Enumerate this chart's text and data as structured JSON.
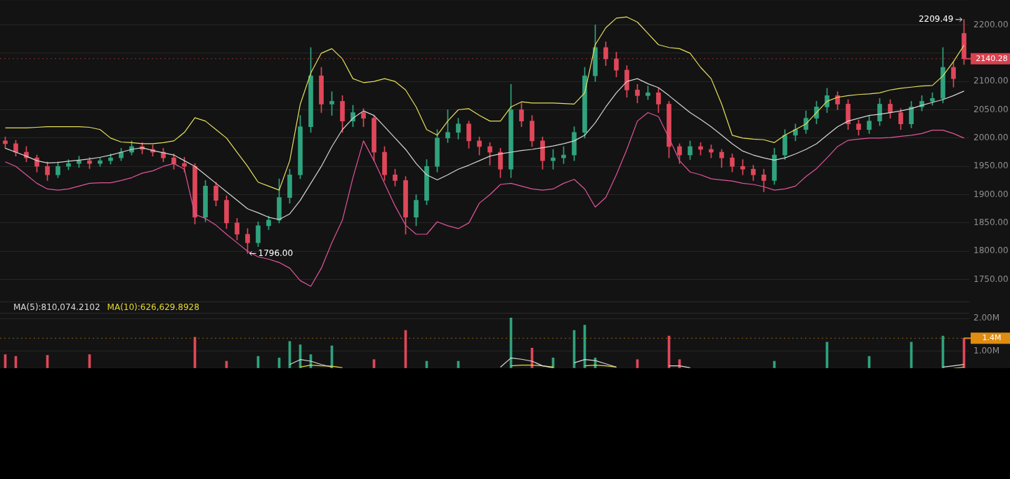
{
  "chart_data": [
    {
      "type": "candlestick",
      "categories": [
        null,
        null,
        null,
        null,
        null,
        null,
        null,
        null,
        null,
        null,
        null,
        null,
        null,
        null,
        null,
        null,
        null,
        null,
        null,
        null,
        null,
        null,
        null,
        null,
        null,
        null,
        null,
        null,
        null,
        null,
        null,
        null,
        null,
        null,
        null,
        null,
        null,
        null,
        null,
        null,
        null,
        null,
        null,
        null,
        null,
        null,
        null,
        null,
        null,
        null,
        null,
        null,
        null,
        null,
        null,
        null,
        null,
        null,
        null,
        null,
        null,
        null,
        null,
        null,
        null,
        null,
        null,
        null,
        null,
        null,
        null,
        null,
        null,
        null,
        null,
        null,
        null,
        null,
        null,
        null,
        null,
        null,
        null,
        null,
        null,
        null,
        null,
        null,
        null,
        null,
        null,
        null
      ],
      "ohlc": [
        [
          1995,
          2002,
          1982,
          1990
        ],
        [
          1990,
          1996,
          1968,
          1975
        ],
        [
          1975,
          1985,
          1958,
          1965
        ],
        [
          1965,
          1970,
          1940,
          1950
        ],
        [
          1950,
          1958,
          1925,
          1935
        ],
        [
          1935,
          1958,
          1930,
          1950
        ],
        [
          1950,
          1962,
          1944,
          1955
        ],
        [
          1955,
          1968,
          1948,
          1960
        ],
        [
          1960,
          1966,
          1946,
          1955
        ],
        [
          1955,
          1966,
          1950,
          1960
        ],
        [
          1960,
          1972,
          1954,
          1965
        ],
        [
          1965,
          1982,
          1960,
          1975
        ],
        [
          1975,
          1995,
          1970,
          1985
        ],
        [
          1985,
          1992,
          1972,
          1980
        ],
        [
          1980,
          1988,
          1968,
          1975
        ],
        [
          1975,
          1982,
          1958,
          1965
        ],
        [
          1965,
          1972,
          1945,
          1955
        ],
        [
          1955,
          1966,
          1940,
          1950
        ],
        [
          1950,
          1955,
          1848,
          1860
        ],
        [
          1860,
          1925,
          1852,
          1915
        ],
        [
          1915,
          1922,
          1880,
          1890
        ],
        [
          1890,
          1898,
          1840,
          1850
        ],
        [
          1850,
          1858,
          1820,
          1830
        ],
        [
          1830,
          1840,
          1796,
          1815
        ],
        [
          1815,
          1852,
          1808,
          1845
        ],
        [
          1845,
          1862,
          1838,
          1855
        ],
        [
          1855,
          1928,
          1850,
          1895
        ],
        [
          1895,
          1945,
          1885,
          1935
        ],
        [
          1935,
          2040,
          1928,
          2020
        ],
        [
          2020,
          2160,
          2010,
          2110
        ],
        [
          2110,
          2125,
          2045,
          2060
        ],
        [
          2060,
          2082,
          2040,
          2065
        ],
        [
          2065,
          2075,
          2010,
          2030
        ],
        [
          2030,
          2058,
          2020,
          2045
        ],
        [
          2045,
          2052,
          2020,
          2035
        ],
        [
          2035,
          2040,
          1960,
          1975
        ],
        [
          1975,
          1985,
          1925,
          1935
        ],
        [
          1935,
          1945,
          1915,
          1925
        ],
        [
          1925,
          1932,
          1830,
          1860
        ],
        [
          1860,
          1900,
          1845,
          1890
        ],
        [
          1890,
          1962,
          1882,
          1950
        ],
        [
          1950,
          2015,
          1940,
          2000
        ],
        [
          2000,
          2050,
          1992,
          2010
        ],
        [
          2010,
          2035,
          1998,
          2025
        ],
        [
          2025,
          2030,
          1982,
          1995
        ],
        [
          1995,
          2002,
          1970,
          1985
        ],
        [
          1985,
          1992,
          1952,
          1975
        ],
        [
          1975,
          1982,
          1930,
          1945
        ],
        [
          1945,
          2095,
          1930,
          2050
        ],
        [
          2050,
          2062,
          2020,
          2030
        ],
        [
          2030,
          2040,
          1985,
          1995
        ],
        [
          1995,
          2002,
          1945,
          1960
        ],
        [
          1960,
          1980,
          1945,
          1965
        ],
        [
          1965,
          1985,
          1955,
          1970
        ],
        [
          1970,
          2020,
          1960,
          2010
        ],
        [
          2010,
          2125,
          2000,
          2110
        ],
        [
          2110,
          2200,
          2100,
          2160
        ],
        [
          2160,
          2170,
          2128,
          2140
        ],
        [
          2140,
          2152,
          2108,
          2120
        ],
        [
          2120,
          2128,
          2072,
          2085
        ],
        [
          2085,
          2095,
          2062,
          2075
        ],
        [
          2075,
          2092,
          2068,
          2080
        ],
        [
          2080,
          2088,
          2045,
          2060
        ],
        [
          2060,
          2065,
          1965,
          1985
        ],
        [
          1985,
          1990,
          1955,
          1970
        ],
        [
          1970,
          1995,
          1962,
          1985
        ],
        [
          1985,
          1992,
          1970,
          1980
        ],
        [
          1980,
          1988,
          1965,
          1975
        ],
        [
          1975,
          1980,
          1948,
          1965
        ],
        [
          1965,
          1972,
          1940,
          1950
        ],
        [
          1950,
          1962,
          1935,
          1945
        ],
        [
          1945,
          1952,
          1925,
          1935
        ],
        [
          1935,
          1945,
          1905,
          1925
        ],
        [
          1925,
          1982,
          1918,
          1970
        ],
        [
          1970,
          2015,
          1962,
          2005
        ],
        [
          2005,
          2025,
          1995,
          2015
        ],
        [
          2015,
          2048,
          2008,
          2035
        ],
        [
          2035,
          2065,
          2025,
          2055
        ],
        [
          2055,
          2088,
          2045,
          2075
        ],
        [
          2075,
          2082,
          2050,
          2060
        ],
        [
          2060,
          2068,
          2015,
          2025
        ],
        [
          2025,
          2032,
          2005,
          2015
        ],
        [
          2015,
          2040,
          2008,
          2030
        ],
        [
          2030,
          2070,
          2022,
          2060
        ],
        [
          2060,
          2068,
          2035,
          2045
        ],
        [
          2045,
          2052,
          2015,
          2025
        ],
        [
          2025,
          2065,
          2018,
          2055
        ],
        [
          2055,
          2075,
          2048,
          2065
        ],
        [
          2065,
          2080,
          2058,
          2070
        ],
        [
          2070,
          2160,
          2062,
          2125
        ],
        [
          2125,
          2135,
          2090,
          2105
        ],
        [
          2185,
          2209.49,
          2130,
          2140.28
        ]
      ],
      "colors": [
        "#e0475a",
        "#e0475a",
        "#e0475a",
        "#e0475a",
        "#e0475a",
        "#2fa37e",
        "#2fa37e",
        "#2fa37e",
        "#e0475a",
        "#2fa37e",
        "#2fa37e",
        "#2fa37e",
        "#2fa37e",
        "#e0475a",
        "#e0475a",
        "#e0475a",
        "#e0475a",
        "#e0475a",
        "#e0475a",
        "#2fa37e",
        "#e0475a",
        "#e0475a",
        "#e0475a",
        "#e0475a",
        "#2fa37e",
        "#2fa37e",
        "#2fa37e",
        "#2fa37e",
        "#2fa37e",
        "#2fa37e",
        "#e0475a",
        "#2fa37e",
        "#e0475a",
        "#2fa37e",
        "#e0475a",
        "#e0475a",
        "#e0475a",
        "#e0475a",
        "#e0475a",
        "#2fa37e",
        "#2fa37e",
        "#2fa37e",
        "#2fa37e",
        "#2fa37e",
        "#e0475a",
        "#e0475a",
        "#e0475a",
        "#e0475a",
        "#2fa37e",
        "#e0475a",
        "#e0475a",
        "#e0475a",
        "#2fa37e",
        "#2fa37e",
        "#2fa37e",
        "#2fa37e",
        "#2fa37e",
        "#e0475a",
        "#e0475a",
        "#e0475a",
        "#e0475a",
        "#2fa37e",
        "#e0475a",
        "#e0475a",
        "#e0475a",
        "#2fa37e",
        "#e0475a",
        "#e0475a",
        "#e0475a",
        "#e0475a",
        "#e0475a",
        "#e0475a",
        "#e0475a",
        "#2fa37e",
        "#2fa37e",
        "#2fa37e",
        "#2fa37e",
        "#2fa37e",
        "#2fa37e",
        "#e0475a",
        "#e0475a",
        "#e0475a",
        "#2fa37e",
        "#2fa37e",
        "#e0475a",
        "#e0475a",
        "#2fa37e",
        "#2fa37e",
        "#2fa37e",
        "#2fa37e",
        "#e0475a",
        "#e0475a"
      ],
      "series": [
        {
          "type": "line",
          "color": "#e5df5c",
          "values": [
            2018,
            2018,
            2018,
            2019,
            2020,
            2020,
            2020,
            2020,
            2019,
            2015,
            2000,
            1993,
            1992,
            1990,
            1990,
            1992,
            1995,
            2010,
            2036,
            2030,
            2015,
            2000,
            1975,
            1950,
            1922,
            1915,
            1908,
            1960,
            2060,
            2115,
            2150,
            2158,
            2140,
            2105,
            2098,
            2100,
            2105,
            2100,
            2085,
            2055,
            2015,
            2005,
            2030,
            2050,
            2052,
            2040,
            2030,
            2030,
            2055,
            2064,
            2062,
            2062,
            2062,
            2061,
            2060,
            2080,
            2165,
            2195,
            2212,
            2214,
            2205,
            2185,
            2165,
            2160,
            2158,
            2150,
            2125,
            2105,
            2060,
            2005,
            2000,
            1998,
            1997,
            1992,
            2005,
            2015,
            2025,
            2045,
            2065,
            2072,
            2075,
            2077,
            2078,
            2080,
            2085,
            2088,
            2090,
            2092,
            2093,
            2110,
            2135,
            2164
          ]
        },
        {
          "type": "line",
          "color": "#d4d4d4",
          "values": [
            1982,
            1975,
            1968,
            1960,
            1956,
            1957,
            1959,
            1961,
            1963,
            1966,
            1970,
            1975,
            1980,
            1983,
            1978,
            1974,
            1970,
            1960,
            1950,
            1935,
            1920,
            1905,
            1890,
            1875,
            1868,
            1860,
            1856,
            1866,
            1890,
            1920,
            1950,
            1985,
            2015,
            2035,
            2048,
            2040,
            2020,
            2000,
            1980,
            1955,
            1935,
            1926,
            1935,
            1945,
            1952,
            1960,
            1968,
            1972,
            1975,
            1978,
            1980,
            1983,
            1986,
            1990,
            1995,
            2005,
            2027,
            2055,
            2080,
            2100,
            2105,
            2096,
            2089,
            2075,
            2060,
            2045,
            2033,
            2020,
            2005,
            1990,
            1977,
            1970,
            1965,
            1961,
            1965,
            1972,
            1980,
            1990,
            2005,
            2020,
            2030,
            2035,
            2040,
            2042,
            2045,
            2048,
            2052,
            2058,
            2063,
            2068,
            2075,
            2083
          ]
        },
        {
          "type": "line",
          "color": "#e0559b",
          "values": [
            1958,
            1950,
            1935,
            1920,
            1910,
            1908,
            1910,
            1915,
            1920,
            1921,
            1921,
            1925,
            1930,
            1938,
            1942,
            1950,
            1955,
            1945,
            1865,
            1858,
            1846,
            1830,
            1815,
            1800,
            1790,
            1786,
            1780,
            1770,
            1748,
            1738,
            1770,
            1815,
            1855,
            1930,
            1995,
            1960,
            1920,
            1880,
            1846,
            1830,
            1830,
            1852,
            1845,
            1840,
            1850,
            1885,
            1900,
            1918,
            1920,
            1915,
            1910,
            1908,
            1910,
            1920,
            1927,
            1910,
            1878,
            1895,
            1935,
            1980,
            2030,
            2045,
            2038,
            2000,
            1960,
            1940,
            1935,
            1928,
            1926,
            1924,
            1920,
            1918,
            1914,
            1908,
            1910,
            1915,
            1932,
            1946,
            1965,
            1985,
            1996,
            1998,
            2000,
            2000,
            2001,
            2003,
            2005,
            2008,
            2014,
            2014,
            2008,
            2000
          ]
        }
      ],
      "ylim": [
        1710,
        2245
      ],
      "yticks": [
        {
          "value": 1750,
          "label": "1750.00"
        },
        {
          "value": 1800,
          "label": "1800.00"
        },
        {
          "value": 1850,
          "label": "1850.00"
        },
        {
          "value": 1900,
          "label": "1900.00"
        },
        {
          "value": 1950,
          "label": "1950.00"
        },
        {
          "value": 2000,
          "label": "2000.00"
        },
        {
          "value": 2050,
          "label": "2050.00"
        },
        {
          "value": 2100,
          "label": "2100.00"
        },
        {
          "value": 2150,
          "label": null
        },
        {
          "value": 2200,
          "label": "2200.00"
        }
      ],
      "grid": "y",
      "tick_labels": "y",
      "ref_lines": [
        {
          "axis": "y",
          "value": 2140.28,
          "label": "2140.28",
          "color": "#d9414f"
        }
      ],
      "annotations": [
        "2209.49",
        "1796.00"
      ]
    },
    {
      "type": "bar",
      "categories": [
        null,
        null,
        null,
        null,
        null,
        null,
        null,
        null,
        null,
        null,
        null,
        null,
        null,
        null,
        null,
        null,
        null,
        null,
        null,
        null,
        null,
        null,
        null,
        null,
        null,
        null,
        null,
        null,
        null,
        null,
        null,
        null,
        null,
        null,
        null,
        null,
        null,
        null,
        null,
        null,
        null,
        null,
        null,
        null,
        null,
        null,
        null,
        null,
        null,
        null,
        null,
        null,
        null,
        null,
        null,
        null,
        null,
        null,
        null,
        null,
        null,
        null,
        null,
        null,
        null,
        null,
        null,
        null,
        null,
        null,
        null,
        null,
        null,
        null,
        null,
        null,
        null,
        null,
        null,
        null,
        null,
        null,
        null,
        null,
        null,
        null,
        null,
        null,
        null,
        null,
        null,
        null
      ],
      "series": [
        {
          "type": "bar",
          "values": [
            900000,
            850000,
            null,
            null,
            880000,
            null,
            null,
            null,
            900000,
            null,
            null,
            null,
            null,
            null,
            null,
            null,
            null,
            null,
            1430000,
            null,
            null,
            700000,
            null,
            null,
            850000,
            null,
            800000,
            1300000,
            1200000,
            900000,
            null,
            1170000,
            null,
            null,
            null,
            750000,
            null,
            null,
            1640000,
            null,
            700000,
            null,
            null,
            700000,
            null,
            null,
            null,
            null,
            2020000,
            null,
            1100000,
            null,
            800000,
            null,
            1640000,
            1800000,
            800000,
            null,
            null,
            null,
            750000,
            null,
            null,
            1470000,
            750000,
            null,
            null,
            null,
            null,
            null,
            null,
            null,
            null,
            700000,
            null,
            null,
            null,
            null,
            1280000,
            null,
            null,
            null,
            850000,
            null,
            null,
            null,
            1280000,
            null,
            null,
            1470000,
            null,
            1400000
          ],
          "colors": [
            "#e0475a",
            "#e0475a",
            "#e0475a",
            "#e0475a",
            "#e0475a",
            "#2fa37e",
            "#2fa37e",
            "#2fa37e",
            "#e0475a",
            "#2fa37e",
            "#2fa37e",
            "#2fa37e",
            "#2fa37e",
            "#e0475a",
            "#e0475a",
            "#e0475a",
            "#e0475a",
            "#e0475a",
            "#e0475a",
            "#2fa37e",
            "#e0475a",
            "#e0475a",
            "#e0475a",
            "#e0475a",
            "#2fa37e",
            "#2fa37e",
            "#2fa37e",
            "#2fa37e",
            "#2fa37e",
            "#2fa37e",
            "#e0475a",
            "#2fa37e",
            "#e0475a",
            "#2fa37e",
            "#e0475a",
            "#e0475a",
            "#e0475a",
            "#e0475a",
            "#e0475a",
            "#2fa37e",
            "#2fa37e",
            "#2fa37e",
            "#2fa37e",
            "#2fa37e",
            "#e0475a",
            "#e0475a",
            "#e0475a",
            "#e0475a",
            "#2fa37e",
            "#e0475a",
            "#e0475a",
            "#e0475a",
            "#2fa37e",
            "#2fa37e",
            "#2fa37e",
            "#2fa37e",
            "#2fa37e",
            "#e0475a",
            "#e0475a",
            "#e0475a",
            "#e0475a",
            "#2fa37e",
            "#e0475a",
            "#e0475a",
            "#e0475a",
            "#2fa37e",
            "#e0475a",
            "#e0475a",
            "#e0475a",
            "#e0475a",
            "#e0475a",
            "#e0475a",
            "#e0475a",
            "#2fa37e",
            "#2fa37e",
            "#2fa37e",
            "#2fa37e",
            "#2fa37e",
            "#2fa37e",
            "#e0475a",
            "#e0475a",
            "#e0475a",
            "#2fa37e",
            "#2fa37e",
            "#e0475a",
            "#e0475a",
            "#2fa37e",
            "#2fa37e",
            "#2fa37e",
            "#2fa37e",
            "#e0475a",
            "#e0475a"
          ]
        },
        {
          "type": "line",
          "name": "MA(5):810,074.2102",
          "color": "#d9d9d9",
          "values": [
            null,
            null,
            null,
            null,
            null,
            null,
            null,
            null,
            null,
            null,
            null,
            null,
            null,
            null,
            null,
            null,
            null,
            null,
            null,
            null,
            null,
            null,
            null,
            null,
            null,
            null,
            null,
            600000,
            750000,
            700000,
            600000,
            520000,
            null,
            null,
            null,
            null,
            null,
            null,
            null,
            null,
            null,
            null,
            null,
            null,
            null,
            null,
            null,
            520000,
            800000,
            760000,
            700000,
            560000,
            500000,
            null,
            650000,
            750000,
            720000,
            620000,
            520000,
            null,
            null,
            null,
            null,
            560000,
            560000,
            500000,
            null,
            null,
            null,
            null,
            null,
            null,
            null,
            null,
            null,
            null,
            null,
            null,
            null,
            null,
            null,
            null,
            null,
            null,
            null,
            null,
            null,
            null,
            null,
            520000,
            560000,
            600000
          ]
        },
        {
          "type": "line",
          "name": "MA(10):626,629.8928",
          "color": "#e3d832",
          "values": [
            null,
            null,
            null,
            null,
            null,
            null,
            null,
            null,
            null,
            null,
            null,
            null,
            null,
            null,
            null,
            null,
            null,
            null,
            null,
            null,
            null,
            null,
            null,
            null,
            null,
            null,
            null,
            null,
            520000,
            580000,
            560000,
            550000,
            500000,
            null,
            null,
            null,
            null,
            null,
            null,
            null,
            null,
            null,
            null,
            null,
            null,
            null,
            null,
            null,
            560000,
            580000,
            580000,
            560000,
            520000,
            null,
            null,
            560000,
            580000,
            560000,
            520000,
            null,
            null,
            null,
            null,
            null,
            null,
            null,
            null,
            null,
            null,
            null,
            null,
            null,
            null,
            null,
            null,
            null,
            null,
            null,
            null,
            null,
            null,
            null,
            null,
            null,
            null,
            null,
            null,
            null,
            null,
            null,
            480000,
            520000
          ]
        }
      ],
      "ylim": [
        470000,
        2170000
      ],
      "yticks": [
        {
          "value": 1000000,
          "label": "1.00M"
        },
        {
          "value": 2000000,
          "label": "2.00M"
        }
      ],
      "grid": "y",
      "tick_labels": "y",
      "legend": "top left",
      "ref_lines": [
        {
          "axis": "y",
          "value": 1400000,
          "label": "1.4M",
          "color": "#e08c10"
        }
      ]
    }
  ]
}
